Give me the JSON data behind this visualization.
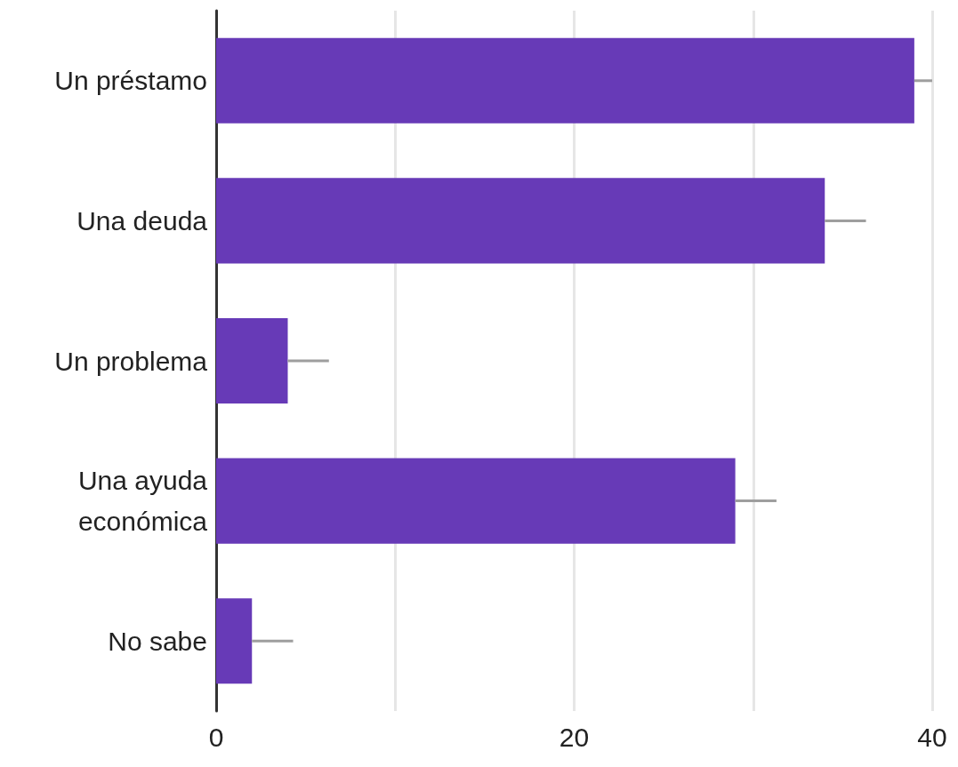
{
  "chart_data": {
    "type": "bar",
    "orientation": "horizontal",
    "categories": [
      "Un préstamo",
      "Una deuda",
      "Un problema",
      "Una ayuda\neconómica",
      "No sabe"
    ],
    "values": [
      39,
      34,
      4,
      29,
      2
    ],
    "errors": [
      [
        39,
        40
      ],
      [
        34,
        36.3
      ],
      [
        4,
        6.3
      ],
      [
        29,
        31.3
      ],
      [
        2,
        4.3
      ]
    ],
    "color": "#673ab7",
    "xlim": [
      0,
      40
    ],
    "xticks": [
      0,
      {
        "value": 10,
        "label": null
      },
      20,
      {
        "value": 30,
        "label": null
      },
      40
    ],
    "grid": "x"
  }
}
